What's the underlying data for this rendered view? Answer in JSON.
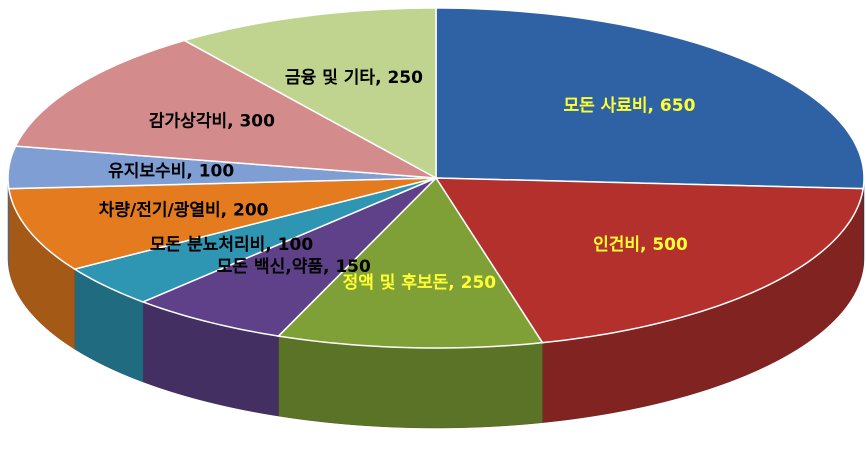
{
  "chart_data": {
    "type": "pie3d",
    "values": [
      650,
      500,
      250,
      150,
      100,
      200,
      100,
      300,
      250
    ],
    "value_labels": [
      "모돈 사료비, 650",
      "인건비, 500",
      "정액 및 후보돈, 250",
      "모돈 백신,약품, 150",
      "모돈 분뇨처리비, 100",
      "차량/전기/광열비, 200",
      "유지보수비, 100",
      "감가상각비, 300",
      "금융 및 기타, 250"
    ],
    "colors": [
      "#2f62a4",
      "#b3302d",
      "#7fa036",
      "#5f4189",
      "#2e95b2",
      "#e47c1f",
      "#7f9fd4",
      "#d48b8b",
      "#c0d48f"
    ],
    "label_colors": [
      "#ffff33",
      "#ffff33",
      "#ffff33",
      "#000000",
      "#000000",
      "#000000",
      "#000000",
      "#000000",
      "#000000"
    ]
  }
}
